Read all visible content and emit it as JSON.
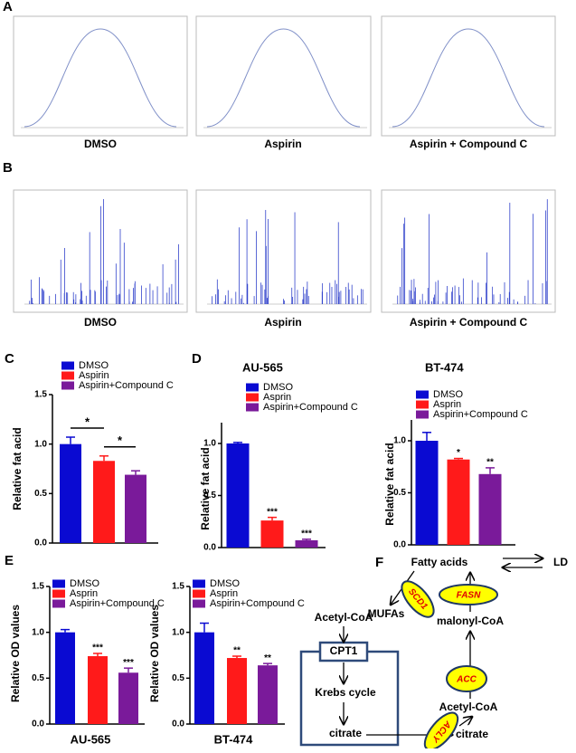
{
  "panel_labels": [
    "A",
    "B",
    "C",
    "D",
    "E",
    "F"
  ],
  "panel_a": {
    "captions": [
      "DMSO",
      "Aspirin",
      "Aspirin + Compound C"
    ]
  },
  "panel_b": {
    "captions": [
      "DMSO",
      "Aspirin",
      "Aspirin + Compound C"
    ]
  },
  "chart_data": [
    {
      "type": "bar",
      "ylabel": "Relative fat acid",
      "ylim": [
        0,
        1.5
      ],
      "yticks": [
        {
          "value": 0,
          "label": "0.0"
        },
        {
          "value": 0.5,
          "label": "0.5"
        },
        {
          "value": 1,
          "label": "1.0"
        },
        {
          "value": 1.5,
          "label": "1.5"
        }
      ],
      "annotations": [
        "*",
        "*"
      ],
      "series": [
        {
          "name": "DMSO",
          "color": "#0a0ad2",
          "values": [
            1.0
          ],
          "errors": [
            0.07
          ]
        },
        {
          "name": "Aspirin",
          "color": "#ff1a1a",
          "values": [
            0.83
          ],
          "errors": [
            0.05
          ]
        },
        {
          "name": "Aspirin+Compound C",
          "color": "#7a1a9a",
          "values": [
            0.69
          ],
          "errors": [
            0.04
          ]
        }
      ]
    },
    {
      "type": "bar",
      "title": "AU-565",
      "ylabel": "Relative fat acid",
      "ylim": [
        0,
        1.2
      ],
      "yticks": [
        {
          "value": 0,
          "label": "0.0"
        },
        {
          "value": 0.5,
          "label": "0.5"
        },
        {
          "value": 1,
          "label": "1.0"
        }
      ],
      "series": [
        {
          "name": "DMSO",
          "color": "#0a0ad2",
          "values": [
            1.0
          ],
          "errors": [
            0.01
          ]
        },
        {
          "name": "Asprin",
          "color": "#ff1a1a",
          "values": [
            0.26
          ],
          "errors": [
            0.03
          ],
          "significance": "***"
        },
        {
          "name": "Aspirin+Compound C",
          "color": "#7a1a9a",
          "values": [
            0.07
          ],
          "errors": [
            0.01
          ],
          "significance": "***"
        }
      ]
    },
    {
      "type": "bar",
      "title": "BT-474",
      "ylabel": "Relative fat acid",
      "ylim": [
        0,
        1.2
      ],
      "yticks": [
        {
          "value": 0,
          "label": "0.0"
        },
        {
          "value": 0.5,
          "label": "0.5"
        },
        {
          "value": 1,
          "label": "1.0"
        }
      ],
      "series": [
        {
          "name": "DMSO",
          "color": "#0a0ad2",
          "values": [
            1.0
          ],
          "errors": [
            0.08
          ]
        },
        {
          "name": "Asprin",
          "color": "#ff1a1a",
          "values": [
            0.82
          ],
          "errors": [
            0.01
          ],
          "significance": "*"
        },
        {
          "name": "Aspirin+Compound C",
          "color": "#7a1a9a",
          "values": [
            0.68
          ],
          "errors": [
            0.06
          ],
          "significance": "**"
        }
      ]
    },
    {
      "type": "bar",
      "xlabel": "AU-565",
      "ylabel": "Relative OD values",
      "ylim": [
        0,
        1.5
      ],
      "yticks": [
        {
          "value": 0,
          "label": "0.0"
        },
        {
          "value": 0.5,
          "label": "0.5"
        },
        {
          "value": 1,
          "label": "1.0"
        },
        {
          "value": 1.5,
          "label": "1.5"
        }
      ],
      "series": [
        {
          "name": "DMSO",
          "color": "#0a0ad2",
          "values": [
            1.0
          ],
          "errors": [
            0.03
          ]
        },
        {
          "name": "Asprin",
          "color": "#ff1a1a",
          "values": [
            0.74
          ],
          "errors": [
            0.03
          ],
          "significance": "***"
        },
        {
          "name": "Aspirin+Compound C",
          "color": "#7a1a9a",
          "values": [
            0.56
          ],
          "errors": [
            0.05
          ],
          "significance": "***"
        }
      ]
    },
    {
      "type": "bar",
      "xlabel": "BT-474",
      "ylabel": "Relative OD values",
      "ylim": [
        0,
        1.5
      ],
      "yticks": [
        {
          "value": 0,
          "label": "0.0"
        },
        {
          "value": 0.5,
          "label": "0.5"
        },
        {
          "value": 1,
          "label": "1.0"
        },
        {
          "value": 1.5,
          "label": "1.5"
        }
      ],
      "series": [
        {
          "name": "DMSO",
          "color": "#0a0ad2",
          "values": [
            1.0
          ],
          "errors": [
            0.1
          ]
        },
        {
          "name": "Asprin",
          "color": "#ff1a1a",
          "values": [
            0.72
          ],
          "errors": [
            0.02
          ],
          "significance": "**"
        },
        {
          "name": "Aspirin+Compound C",
          "color": "#7a1a9a",
          "values": [
            0.64
          ],
          "errors": [
            0.02
          ],
          "significance": "**"
        }
      ]
    }
  ],
  "diagram": {
    "nodes": [
      "Fatty acids",
      "LD",
      "SCD1",
      "FASN",
      "MUFAs",
      "malonyl-CoA",
      "Acetyl-CoA",
      "CPT1",
      "ACC",
      "Acetyl-CoA",
      "Krebs cycle",
      "citrate",
      "ACLY",
      "citrate"
    ]
  }
}
